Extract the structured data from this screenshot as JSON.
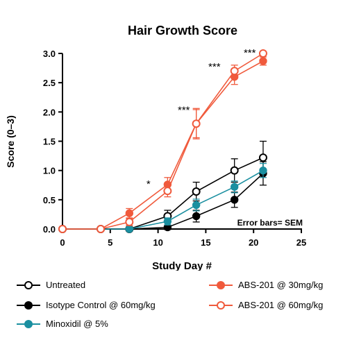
{
  "chart_data": {
    "type": "line",
    "title": "Hair Growth Score",
    "xlabel": "Study Day #",
    "ylabel": "Score (0–3)",
    "xlim": [
      0,
      25
    ],
    "ylim": [
      0,
      3
    ],
    "x_ticks": [
      "0",
      "5",
      "10",
      "15",
      "20",
      "25"
    ],
    "y_ticks": [
      "0.0",
      "0.5",
      "1.0",
      "1.5",
      "2.0",
      "2.5",
      "3.0"
    ],
    "annotation": "Error bars= SEM",
    "grid": false,
    "legend_position": "bottom",
    "series": [
      {
        "name": "Untreated",
        "color": "#000000",
        "marker": "open-circle",
        "x": [
          0,
          4,
          7,
          11,
          14,
          18,
          21
        ],
        "y": [
          0,
          0,
          0,
          0.22,
          0.64,
          1.0,
          1.22
        ],
        "err": [
          0,
          0,
          0,
          0.1,
          0.16,
          0.2,
          0.28
        ]
      },
      {
        "name": "Isotype Control @ 60mg/kg",
        "color": "#000000",
        "marker": "filled-circle",
        "x": [
          0,
          4,
          7,
          11,
          14,
          18,
          21
        ],
        "y": [
          0,
          0,
          0,
          0.03,
          0.22,
          0.5,
          0.95
        ],
        "err": [
          0,
          0,
          0,
          0.04,
          0.1,
          0.13,
          0.2
        ]
      },
      {
        "name": "Minoxidil @ 5%",
        "color": "#1a8fa0",
        "marker": "filled-circle",
        "x": [
          0,
          4,
          7,
          11,
          14,
          18,
          21
        ],
        "y": [
          0,
          0,
          0,
          0.13,
          0.41,
          0.72,
          1.0
        ],
        "err": [
          0,
          0,
          0,
          0.06,
          0.1,
          0.1,
          0.12
        ]
      },
      {
        "name": "ABS-201 @ 30mg/kg",
        "color": "#f05a3c",
        "marker": "filled-circle",
        "x": [
          0,
          4,
          7,
          11,
          14,
          18,
          21
        ],
        "y": [
          0,
          0,
          0.27,
          0.76,
          1.8,
          2.6,
          2.87
        ],
        "err": [
          0,
          0,
          0.08,
          0.12,
          0.24,
          0.13,
          0.07
        ]
      },
      {
        "name": "ABS-201 @ 60mg/kg",
        "color": "#f05a3c",
        "marker": "open-circle",
        "x": [
          0,
          4,
          7,
          11,
          14,
          18,
          21
        ],
        "y": [
          0,
          0,
          0.12,
          0.65,
          1.8,
          2.7,
          3.0
        ],
        "err": [
          0,
          0,
          0.06,
          0.1,
          0.26,
          0.1,
          0.03
        ]
      }
    ],
    "significance": [
      {
        "x": 9,
        "y": 0.76,
        "label": "*"
      },
      {
        "x": 12.7,
        "y": 2.02,
        "label": "***"
      },
      {
        "x": 15.9,
        "y": 2.76,
        "label": "***"
      },
      {
        "x": 19.6,
        "y": 3.0,
        "label": "***"
      }
    ]
  }
}
